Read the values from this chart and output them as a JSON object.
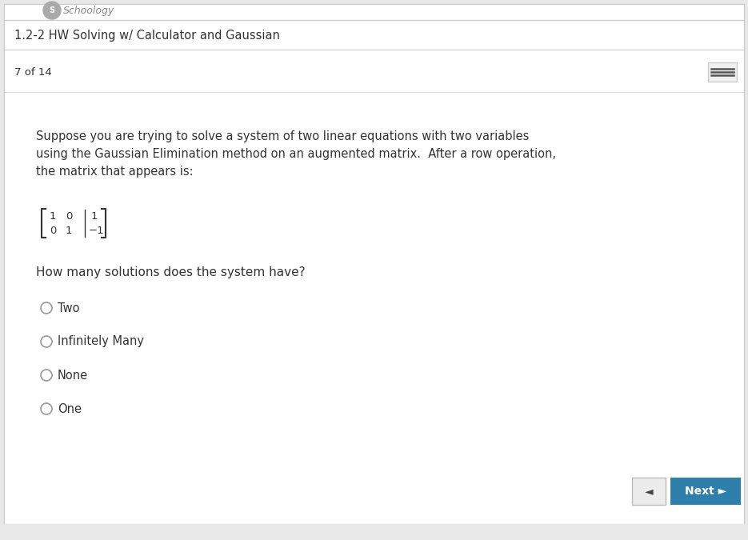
{
  "bg_color": "#e8e8e8",
  "main_bg": "#ffffff",
  "header_text": "1.2-2 HW Solving w/ Calculator and Gaussian",
  "progress_text": "7 of 14",
  "question_line1": "Suppose you are trying to solve a system of two linear equations with two variables",
  "question_line2": "using the Gaussian Elimination method on an augmented matrix.  After a row operation,",
  "question_line3": "the matrix that appears is:",
  "how_many_text": "How many solutions does the system have?",
  "options": [
    "Two",
    "Infinitely Many",
    "None",
    "One"
  ],
  "next_btn_color": "#2e7fab",
  "next_btn_text": "Next ",
  "prev_btn_color": "#ececec",
  "header_border_color": "#cccccc",
  "font_color": "#333333",
  "option_circle_color": "#999999",
  "hamburger_color": "#555555",
  "title_fontsize": 10.5,
  "body_fontsize": 10.5,
  "matrix_fontsize": 9.5,
  "option_fontsize": 10.5
}
